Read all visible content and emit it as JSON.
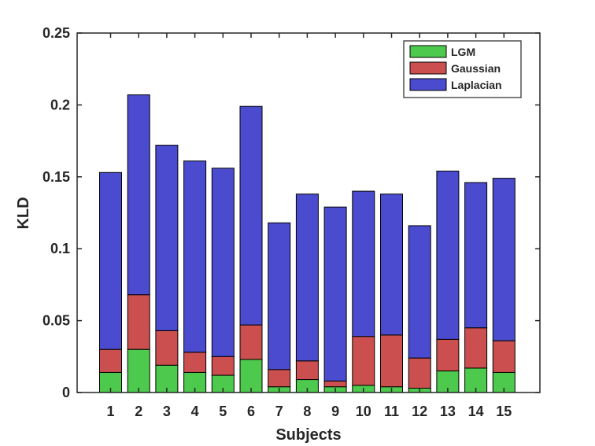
{
  "chart_data": {
    "type": "bar",
    "stacked": true,
    "title": "",
    "xlabel": "Subjects",
    "ylabel": "KLD",
    "ylim": [
      0,
      0.25
    ],
    "yticks": [
      "0",
      "0.05",
      "0.1",
      "0.15",
      "0.2",
      "0.25"
    ],
    "yticks_values": [
      0,
      0.05,
      0.1,
      0.15,
      0.2,
      0.25
    ],
    "categories": [
      "1",
      "2",
      "3",
      "4",
      "5",
      "6",
      "7",
      "8",
      "9",
      "10",
      "11",
      "12",
      "13",
      "14",
      "15"
    ],
    "legend_position": "top-right",
    "series": [
      {
        "name": "LGM",
        "color": "#4dc94d",
        "values": [
          0.014,
          0.03,
          0.019,
          0.014,
          0.012,
          0.023,
          0.004,
          0.009,
          0.004,
          0.005,
          0.004,
          0.003,
          0.015,
          0.017,
          0.014
        ]
      },
      {
        "name": "Gaussian",
        "color": "#cc4f4f",
        "values": [
          0.016,
          0.038,
          0.024,
          0.014,
          0.013,
          0.024,
          0.012,
          0.013,
          0.004,
          0.034,
          0.036,
          0.021,
          0.022,
          0.028,
          0.022
        ]
      },
      {
        "name": "Laplacian",
        "color": "#4b4bcf",
        "values": [
          0.123,
          0.139,
          0.129,
          0.133,
          0.131,
          0.152,
          0.102,
          0.116,
          0.121,
          0.101,
          0.098,
          0.092,
          0.117,
          0.101,
          0.113
        ]
      }
    ]
  }
}
